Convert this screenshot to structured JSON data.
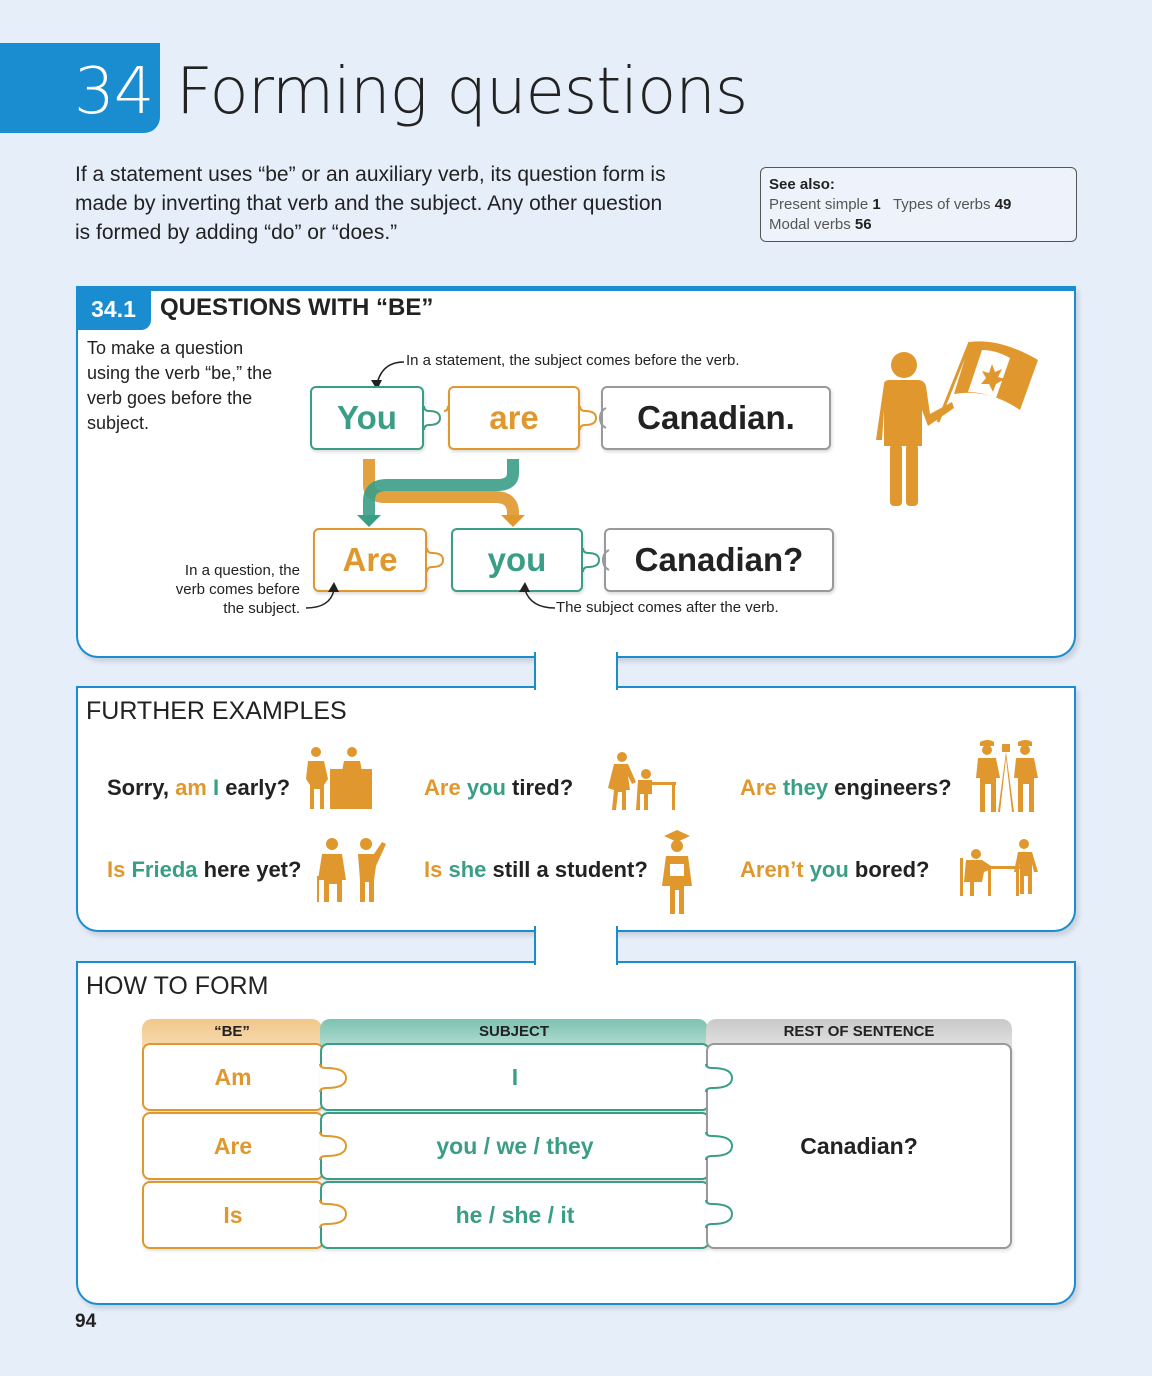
{
  "header": {
    "chapter_number": "34",
    "chapter_title": "Forming questions",
    "intro": "If a statement uses “be” or an auxiliary verb, its question form is made by inverting that verb and the subject. Any other question is formed by adding “do” or “does.”"
  },
  "see_also": {
    "heading": "See also:",
    "items": [
      {
        "label": "Present simple",
        "num": "1"
      },
      {
        "label": "Types of verbs",
        "num": "49"
      },
      {
        "label": "Modal verbs",
        "num": "56"
      }
    ]
  },
  "section1": {
    "number": "34.1",
    "title": "QUESTIONS WITH “BE”",
    "explanation": "To make a question using the verb “be,” the verb goes before the subject.",
    "note_statement": "In a statement, the subject comes before the verb.",
    "note_question_verb": "In a question, the verb comes before the subject.",
    "note_subject_after": "The subject comes after the verb.",
    "statement": [
      "You",
      "are",
      "Canadian."
    ],
    "question": [
      "Are",
      "you",
      "Canadian?"
    ]
  },
  "further_examples": {
    "heading": "FURTHER EXAMPLES",
    "items": [
      {
        "pre": "Sorry, ",
        "verb": "am",
        "subject": "I",
        "rest": " early?",
        "order": "verb-first"
      },
      {
        "pre": "",
        "verb": "Are",
        "subject": "you",
        "rest": " tired?",
        "order": "verb-first"
      },
      {
        "pre": "",
        "verb": "Are",
        "subject": "they",
        "rest": " engineers?",
        "order": "verb-first"
      },
      {
        "pre": "",
        "verb": "Is",
        "subject": "Frieda",
        "rest": " here yet?",
        "order": "verb-first"
      },
      {
        "pre": "",
        "verb": "Is",
        "subject": "she",
        "rest": " still a student?",
        "order": "verb-first"
      },
      {
        "pre": "",
        "verb": "Aren’t",
        "subject": "you",
        "rest": " bored?",
        "order": "verb-first"
      }
    ]
  },
  "how_to_form": {
    "heading": "HOW TO FORM",
    "headers": [
      "“BE”",
      "SUBJECT",
      "REST OF SENTENCE"
    ],
    "rows": [
      {
        "be": "Am",
        "subject": "I"
      },
      {
        "be": "Are",
        "subject": "you / we / they"
      },
      {
        "be": "Is",
        "subject": "he / she / it"
      }
    ],
    "rest": "Canadian?"
  },
  "page_number": "94",
  "colors": {
    "blue": "#1a8cd0",
    "orange": "#e0982e",
    "teal": "#3a9d86",
    "gray": "#999999"
  },
  "icons": [
    "person-with-canada-flag-icon",
    "maple-leaf-icon",
    "people-at-desk-icon",
    "teacher-and-student-icon",
    "engineers-icon",
    "elderly-people-greeting-icon",
    "graduate-icon",
    "bored-person-at-table-icon"
  ]
}
